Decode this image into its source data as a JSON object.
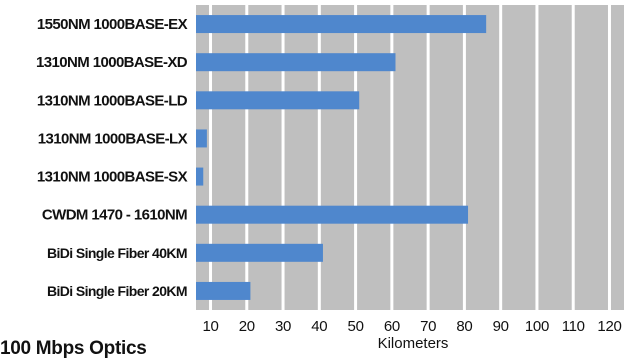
{
  "chart_data": {
    "type": "bar",
    "orientation": "horizontal",
    "categories": [
      "1550NM 1000BASE-EX",
      "1310NM 1000BASE-XD",
      "1310NM 1000BASE-LD",
      "1310NM 1000BASE-LX",
      "1310NM 1000BASE-SX",
      "CWDM 1470 - 1610NM",
      "BiDi Single Fiber 40KM",
      "BiDi Single Fiber 20KM"
    ],
    "values": [
      86,
      61,
      51,
      9,
      8,
      81,
      41,
      21
    ],
    "xticks": [
      10,
      20,
      30,
      40,
      50,
      60,
      70,
      80,
      90,
      100,
      110,
      120
    ],
    "xlim": [
      6,
      124
    ],
    "xlabel": "Kilometers",
    "ylabel": "",
    "grid": true,
    "colors": {
      "bar": "#4f87cd",
      "plot_background": "#bfbfbf",
      "gridline": "#ffffff"
    }
  },
  "footer": {
    "caption": "100 Mbps Optics"
  }
}
